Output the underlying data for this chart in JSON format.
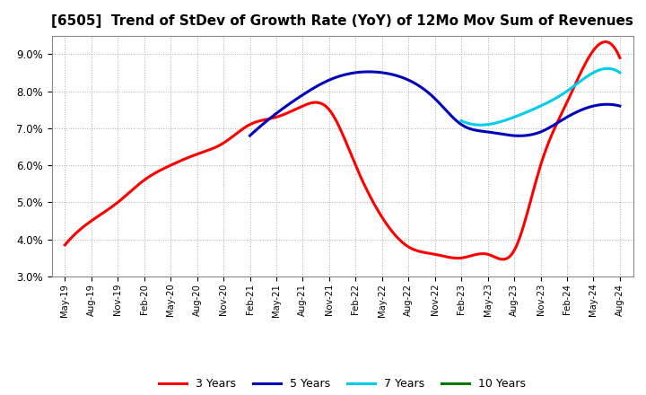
{
  "title": "[6505]  Trend of StDev of Growth Rate (YoY) of 12Mo Mov Sum of Revenues",
  "title_fontsize": 11,
  "background_color": "#ffffff",
  "plot_bg_color": "#ffffff",
  "grid_color": "#999999",
  "legend_entries": [
    "3 Years",
    "5 Years",
    "7 Years",
    "10 Years"
  ],
  "legend_colors": [
    "#ff0000",
    "#0000bb",
    "#00ccee",
    "#007700"
  ],
  "ylim": [
    0.03,
    0.095
  ],
  "yticks": [
    0.03,
    0.04,
    0.05,
    0.06,
    0.07,
    0.08,
    0.09
  ],
  "x_labels": [
    "May-19",
    "Aug-19",
    "Nov-19",
    "Feb-20",
    "May-20",
    "Aug-20",
    "Nov-20",
    "Feb-21",
    "May-21",
    "Aug-21",
    "Nov-21",
    "Feb-22",
    "May-22",
    "Aug-22",
    "Nov-22",
    "Feb-23",
    "May-23",
    "Aug-23",
    "Nov-23",
    "Feb-24",
    "May-24",
    "Aug-24"
  ],
  "series_3y_x": [
    0,
    1,
    2,
    3,
    4,
    5,
    6,
    7,
    8,
    9,
    10,
    11,
    12,
    13,
    14,
    15,
    16,
    17,
    18,
    19,
    20,
    21
  ],
  "series_3y_y": [
    0.0385,
    0.045,
    0.05,
    0.056,
    0.06,
    0.063,
    0.066,
    0.071,
    0.073,
    0.076,
    0.075,
    0.06,
    0.046,
    0.038,
    0.036,
    0.035,
    0.036,
    0.037,
    0.06,
    0.077,
    0.091,
    0.089
  ],
  "series_5y_x": [
    7,
    8,
    9,
    10,
    11,
    12,
    13,
    14,
    15,
    16,
    17,
    18,
    19,
    20,
    21
  ],
  "series_5y_y": [
    0.068,
    0.074,
    0.079,
    0.083,
    0.085,
    0.085,
    0.083,
    0.078,
    0.071,
    0.069,
    0.068,
    0.069,
    0.073,
    0.076,
    0.076
  ],
  "series_7y_x": [
    15,
    16,
    17,
    18,
    19,
    20,
    21
  ],
  "series_7y_y": [
    0.072,
    0.071,
    0.073,
    0.076,
    0.08,
    0.085,
    0.085
  ],
  "series_10y_x": [],
  "series_10y_y": []
}
